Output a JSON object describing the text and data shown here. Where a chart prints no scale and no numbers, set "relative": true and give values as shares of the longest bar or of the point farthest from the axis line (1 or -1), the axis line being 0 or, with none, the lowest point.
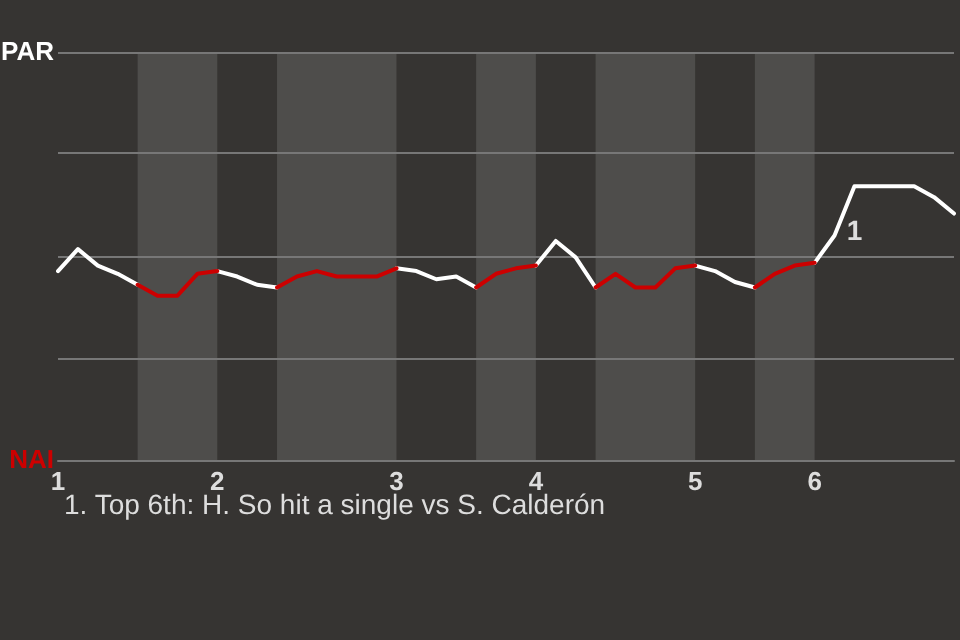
{
  "chart_data": {
    "type": "line",
    "categories": [
      "1",
      null,
      null,
      null,
      null,
      null,
      null,
      null,
      "2",
      null,
      null,
      null,
      null,
      null,
      null,
      null,
      null,
      "3",
      null,
      null,
      null,
      null,
      null,
      null,
      "4",
      null,
      null,
      null,
      null,
      null,
      null,
      null,
      "5",
      null,
      null,
      null,
      null,
      null,
      "6",
      null,
      null,
      null,
      null,
      null,
      null,
      null
    ],
    "relative": true,
    "series": [
      {
        "color": "#ffffff",
        "values": [
          0.69,
          0.77,
          0.71,
          0.68,
          0.64,
          null,
          null,
          null,
          0.69,
          0.67,
          0.64,
          0.63,
          null,
          null,
          null,
          null,
          null,
          0.7,
          0.69,
          0.66,
          0.67,
          0.63,
          null,
          null,
          0.71,
          0.8,
          0.74,
          0.63,
          null,
          null,
          null,
          null,
          0.71,
          0.69,
          0.65,
          0.63,
          null,
          null,
          0.72,
          0.82,
          1,
          1,
          1,
          1,
          0.96,
          0.9
        ]
      },
      {
        "color": "#cc0000",
        "values": [
          null,
          null,
          null,
          null,
          0.64,
          0.6,
          0.6,
          0.68,
          0.69,
          null,
          null,
          0.63,
          0.67,
          0.69,
          0.67,
          0.67,
          0.67,
          0.7,
          null,
          null,
          null,
          0.63,
          0.68,
          0.7,
          0.71,
          null,
          null,
          0.63,
          0.68,
          0.63,
          0.63,
          0.7,
          0.71,
          null,
          null,
          0.63,
          0.68,
          0.71,
          0.72,
          null,
          null,
          null,
          null,
          null,
          null,
          null
        ]
      }
    ],
    "annotations": [
      {
        "text": "1",
        "y": 1
      },
      "PAR",
      "NAI",
      "1. Top 6th: H. So hit a single vs S. Calderón"
    ],
    "ref_lines": [
      {
        "axis": "y",
        "value": 0.37,
        "color": "#777777"
      },
      {
        "axis": "y",
        "value": 0.74,
        "color": "#777777"
      },
      {
        "axis": "y",
        "value": 1.12,
        "color": "#777777"
      },
      {
        "axis": "y",
        "value": 1.49,
        "color": "#777777"
      }
    ]
  }
}
